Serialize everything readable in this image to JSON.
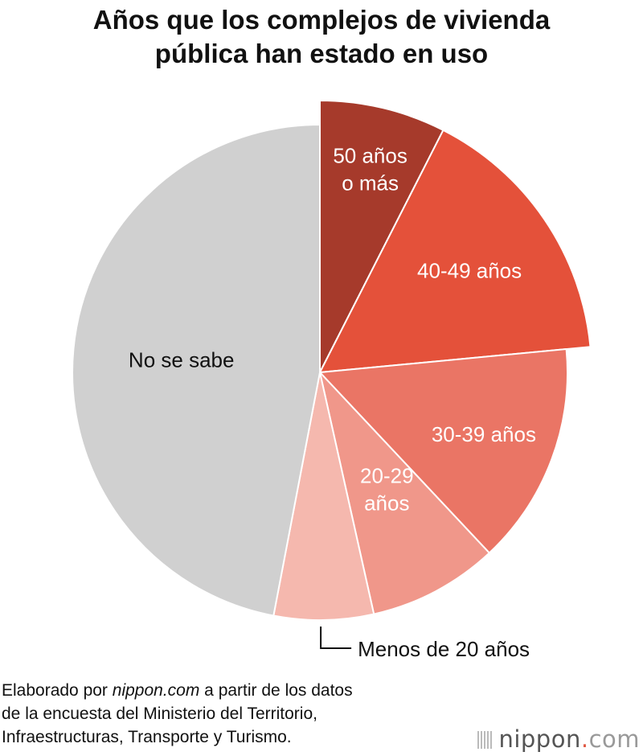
{
  "title_lines": [
    "Años que los complejos de vivienda",
    "pública han estado en uso"
  ],
  "chart_data": {
    "type": "pie",
    "title": "Años que los complejos de vivienda pública han estado en uso",
    "unit": "%",
    "slices": [
      {
        "label": "50 años o más",
        "label_lines": [
          "50 años",
          "o más"
        ],
        "value": 7.5,
        "color": "#a63a2b",
        "exploded": true,
        "label_color": "#ffffff"
      },
      {
        "label": "40-49 años",
        "label_lines": [
          "40-49 años"
        ],
        "value": 16.0,
        "color": "#e4513a",
        "exploded": true,
        "label_color": "#ffffff"
      },
      {
        "label": "30-39 años",
        "label_lines": [
          "30-39 años"
        ],
        "value": 14.5,
        "color": "#ea7565",
        "exploded": false,
        "label_color": "#ffffff"
      },
      {
        "label": "20-29 años",
        "label_lines": [
          "20-29",
          "años"
        ],
        "value": 8.5,
        "color": "#f0978a",
        "exploded": false,
        "label_color": "#ffffff"
      },
      {
        "label": "Menos de 20 años",
        "label_lines": [
          "Menos de 20 años"
        ],
        "value": 6.5,
        "color": "#f5b8ae",
        "exploded": false,
        "label_color": "#111111",
        "callout": true
      },
      {
        "label": "No se sabe",
        "label_lines": [
          "No se sabe"
        ],
        "value": 47.0,
        "color": "#d0d0d0",
        "exploded": false,
        "label_color": "#111111"
      }
    ]
  },
  "source": {
    "line1_pre": "Elaborado por ",
    "line1_name": "nippon.com",
    "line1_post": " a partir de los datos",
    "line2": "de la encuesta del Ministerio del Territorio,",
    "line3": "Infraestructuras, Transporte y Turismo."
  },
  "logo": {
    "main": "nippon",
    "dot": ".",
    "suffix": "com"
  }
}
